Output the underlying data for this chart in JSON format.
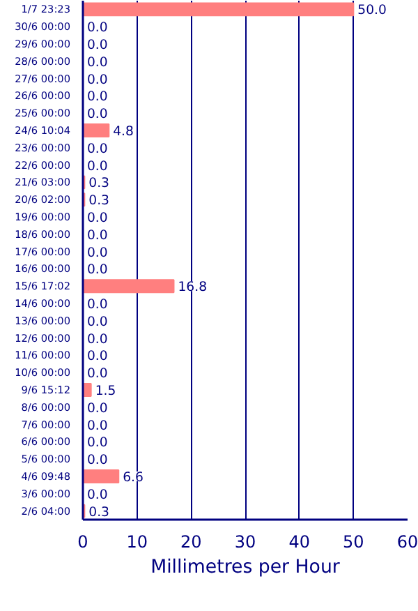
{
  "chart_data": {
    "type": "bar",
    "orientation": "horizontal",
    "xlabel": "Millimetres per Hour",
    "categories": [
      "1/7 23:23",
      "30/6 00:00",
      "29/6 00:00",
      "28/6 00:00",
      "27/6 00:00",
      "26/6 00:00",
      "25/6 00:00",
      "24/6 10:04",
      "23/6 00:00",
      "22/6 00:00",
      "21/6 03:00",
      "20/6 02:00",
      "19/6 00:00",
      "18/6 00:00",
      "17/6 00:00",
      "16/6 00:00",
      "15/6 17:02",
      "14/6 00:00",
      "13/6 00:00",
      "12/6 00:00",
      "11/6 00:00",
      "10/6 00:00",
      "9/6 15:12",
      "8/6 00:00",
      "7/6 00:00",
      "6/6 00:00",
      "5/6 00:00",
      "4/6 09:48",
      "3/6 00:00",
      "2/6 04:00"
    ],
    "values": [
      50.0,
      0.0,
      0.0,
      0.0,
      0.0,
      0.0,
      0.0,
      4.8,
      0.0,
      0.0,
      0.3,
      0.3,
      0.0,
      0.0,
      0.0,
      0.0,
      16.8,
      0.0,
      0.0,
      0.0,
      0.0,
      0.0,
      1.5,
      0.0,
      0.0,
      0.0,
      0.0,
      6.6,
      0.0,
      0.3
    ],
    "value_labels": [
      "50.0",
      "0.0",
      "0.0",
      "0.0",
      "0.0",
      "0.0",
      "0.0",
      "4.8",
      "0.0",
      "0.0",
      "0.3",
      "0.3",
      "0.0",
      "0.0",
      "0.0",
      "0.0",
      "16.8",
      "0.0",
      "0.0",
      "0.0",
      "0.0",
      "0.0",
      "1.5",
      "0.0",
      "0.0",
      "0.0",
      "0.0",
      "6.6",
      "0.0",
      "0.3"
    ],
    "color": "#ff7f7f",
    "xlim": [
      0,
      60
    ],
    "xticks": [
      0,
      10,
      20,
      30,
      40,
      50,
      60
    ],
    "grid": "x"
  }
}
